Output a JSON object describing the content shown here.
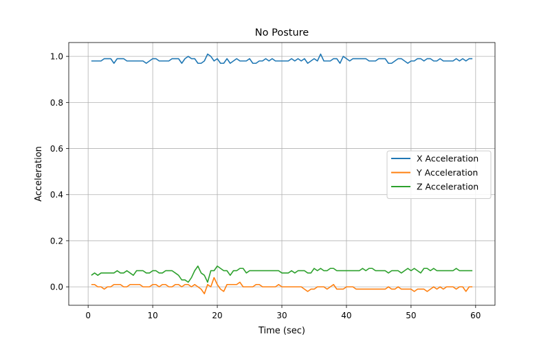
{
  "chart_data": {
    "type": "line",
    "title": "No Posture",
    "xlabel": "Time (sec)",
    "ylabel": "Acceleration",
    "xlim": [
      -3,
      63
    ],
    "ylim": [
      -0.08,
      1.06
    ],
    "xticks": [
      0,
      10,
      20,
      30,
      40,
      50,
      60
    ],
    "xtick_labels": [
      "0",
      "10",
      "20",
      "30",
      "40",
      "50",
      "60"
    ],
    "yticks": [
      0.0,
      0.2,
      0.4,
      0.6,
      0.8,
      1.0
    ],
    "ytick_labels": [
      "0.0",
      "0.2",
      "0.4",
      "0.6",
      "0.8",
      "1.0"
    ],
    "grid": true,
    "legend_position": "center-right",
    "x_start": 0.5,
    "x_step": 0.5,
    "series": [
      {
        "name": "X Acceleration",
        "color": "#1f77b4",
        "values": [
          0.98,
          0.98,
          0.98,
          0.98,
          0.99,
          0.99,
          0.99,
          0.97,
          0.99,
          0.99,
          0.99,
          0.98,
          0.98,
          0.98,
          0.98,
          0.98,
          0.98,
          0.97,
          0.98,
          0.99,
          0.99,
          0.98,
          0.98,
          0.98,
          0.98,
          0.99,
          0.99,
          0.99,
          0.97,
          0.99,
          1.0,
          0.99,
          0.99,
          0.97,
          0.97,
          0.98,
          1.01,
          1.0,
          0.98,
          0.99,
          0.97,
          0.97,
          0.99,
          0.97,
          0.98,
          0.99,
          0.98,
          0.98,
          0.98,
          0.99,
          0.97,
          0.97,
          0.98,
          0.98,
          0.99,
          0.98,
          0.99,
          0.98,
          0.98,
          0.98,
          0.98,
          0.98,
          0.99,
          0.98,
          0.99,
          0.98,
          0.99,
          0.97,
          0.98,
          0.99,
          0.98,
          1.01,
          0.98,
          0.98,
          0.98,
          0.99,
          0.99,
          0.97,
          1.0,
          0.99,
          0.98,
          0.99,
          0.99,
          0.99,
          0.99,
          0.99,
          0.98,
          0.98,
          0.98,
          0.99,
          0.99,
          0.99,
          0.97,
          0.97,
          0.98,
          0.99,
          0.99,
          0.98,
          0.97,
          0.98,
          0.98,
          0.99,
          0.99,
          0.98,
          0.99,
          0.99,
          0.98,
          0.98,
          0.99,
          0.98,
          0.98,
          0.98,
          0.98,
          0.99,
          0.98,
          0.99,
          0.98,
          0.99,
          0.99
        ]
      },
      {
        "name": "Y Acceleration",
        "color": "#ff7f0e",
        "values": [
          0.01,
          0.01,
          0.0,
          0.0,
          -0.01,
          0.0,
          0.0,
          0.01,
          0.01,
          0.01,
          0.0,
          0.0,
          0.01,
          0.01,
          0.01,
          0.01,
          0.0,
          0.0,
          0.0,
          0.01,
          0.01,
          0.0,
          0.01,
          0.01,
          0.0,
          0.0,
          0.01,
          0.01,
          0.0,
          0.01,
          0.01,
          0.0,
          0.01,
          0.0,
          -0.01,
          -0.03,
          0.01,
          0.0,
          0.04,
          0.01,
          -0.01,
          -0.02,
          0.01,
          0.01,
          0.01,
          0.01,
          0.02,
          0.0,
          0.0,
          0.0,
          0.0,
          0.01,
          0.01,
          0.0,
          0.0,
          0.0,
          0.0,
          0.0,
          0.01,
          0.0,
          0.0,
          0.0,
          0.0,
          0.0,
          0.0,
          0.0,
          -0.01,
          -0.02,
          -0.01,
          -0.01,
          0.0,
          0.0,
          0.0,
          -0.01,
          0.0,
          0.01,
          -0.01,
          -0.01,
          -0.01,
          0.0,
          0.0,
          0.0,
          -0.01,
          -0.01,
          -0.01,
          -0.01,
          -0.01,
          -0.01,
          -0.01,
          -0.01,
          -0.01,
          -0.01,
          0.0,
          -0.01,
          -0.01,
          0.0,
          -0.01,
          -0.01,
          -0.01,
          -0.01,
          -0.02,
          -0.01,
          -0.01,
          -0.01,
          -0.02,
          -0.01,
          0.0,
          -0.01,
          0.0,
          -0.01,
          0.0,
          0.0,
          0.0,
          -0.01,
          0.0,
          0.0,
          -0.02,
          0.0,
          0.0
        ]
      },
      {
        "name": "Z Acceleration",
        "color": "#2ca02c",
        "values": [
          0.05,
          0.06,
          0.05,
          0.06,
          0.06,
          0.06,
          0.06,
          0.06,
          0.07,
          0.06,
          0.06,
          0.07,
          0.06,
          0.05,
          0.07,
          0.07,
          0.07,
          0.06,
          0.06,
          0.07,
          0.07,
          0.06,
          0.06,
          0.07,
          0.07,
          0.07,
          0.06,
          0.05,
          0.03,
          0.03,
          0.02,
          0.04,
          0.07,
          0.09,
          0.06,
          0.05,
          0.02,
          0.07,
          0.07,
          0.09,
          0.08,
          0.07,
          0.07,
          0.05,
          0.07,
          0.07,
          0.08,
          0.08,
          0.06,
          0.07,
          0.07,
          0.07,
          0.07,
          0.07,
          0.07,
          0.07,
          0.07,
          0.07,
          0.07,
          0.06,
          0.06,
          0.06,
          0.07,
          0.06,
          0.07,
          0.07,
          0.07,
          0.06,
          0.06,
          0.08,
          0.07,
          0.08,
          0.07,
          0.07,
          0.08,
          0.08,
          0.07,
          0.07,
          0.07,
          0.07,
          0.07,
          0.07,
          0.07,
          0.07,
          0.08,
          0.07,
          0.08,
          0.08,
          0.07,
          0.07,
          0.07,
          0.07,
          0.06,
          0.07,
          0.07,
          0.07,
          0.06,
          0.07,
          0.08,
          0.07,
          0.08,
          0.07,
          0.06,
          0.08,
          0.08,
          0.07,
          0.08,
          0.07,
          0.07,
          0.07,
          0.07,
          0.07,
          0.07,
          0.08,
          0.07,
          0.07,
          0.07,
          0.07,
          0.07
        ]
      }
    ]
  }
}
